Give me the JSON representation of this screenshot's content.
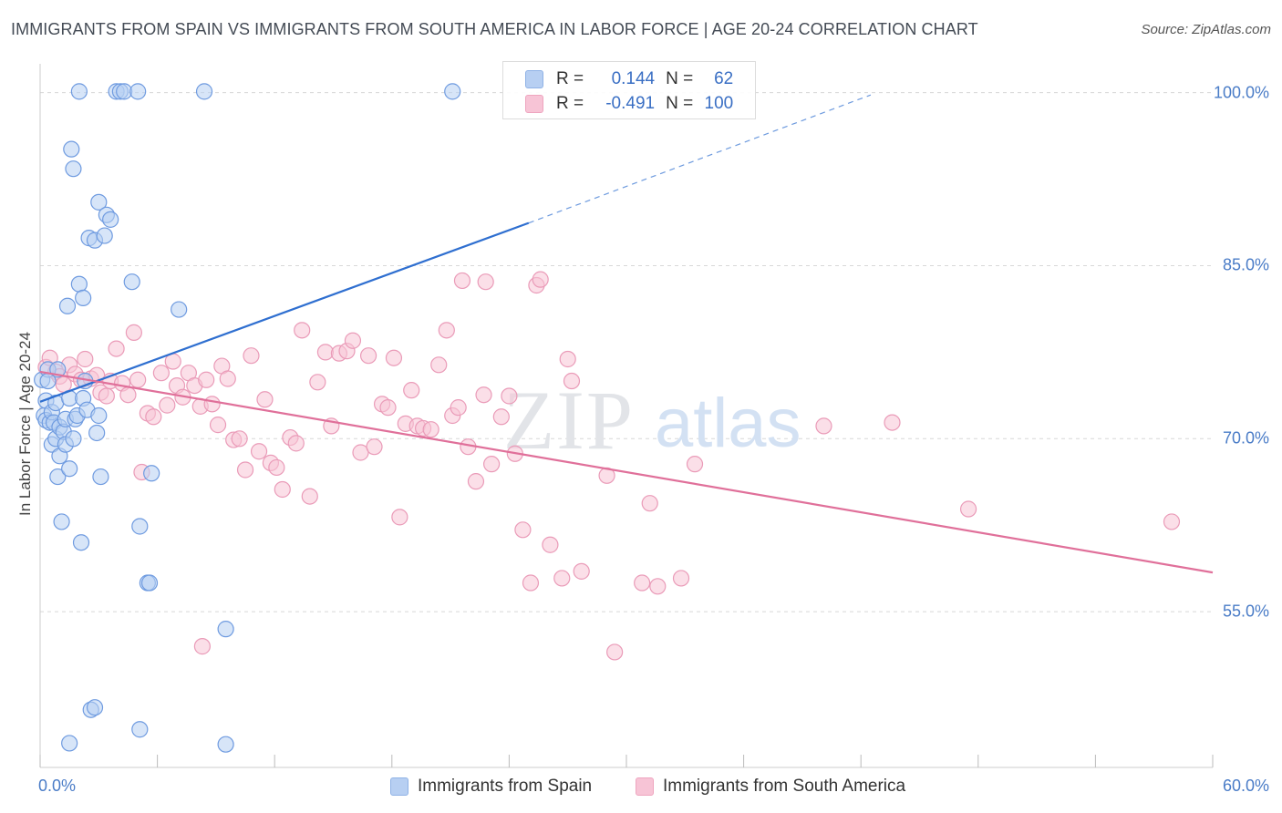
{
  "header": {
    "title": "IMMIGRANTS FROM SPAIN VS IMMIGRANTS FROM SOUTH AMERICA IN LABOR FORCE | AGE 20-24 CORRELATION CHART",
    "source": "Source: ZipAtlas.com"
  },
  "watermark": {
    "zip": "ZIP",
    "atlas": "atlas"
  },
  "legend": {
    "r_label": "R =",
    "n_label": "N =",
    "series": [
      {
        "r": "0.144",
        "n": "62"
      },
      {
        "r": "-0.491",
        "n": "100"
      }
    ]
  },
  "bottom_legend": {
    "spain": "Immigrants from Spain",
    "south_america": "Immigrants from South America"
  },
  "colors": {
    "spain_fill": "#b7cff2",
    "spain_stroke": "#6f9be0",
    "spain_line": "#2f6fd0",
    "sa_fill": "#f7c4d6",
    "sa_stroke": "#ea9bb8",
    "sa_line": "#e0709a",
    "tick_text": "#4a7cc7",
    "grid": "#d8d8d8"
  },
  "chart_data": {
    "type": "scatter",
    "title": "IMMIGRANTS FROM SPAIN VS IMMIGRANTS FROM SOUTH AMERICA IN LABOR FORCE | AGE 20-24 CORRELATION CHART",
    "xlabel": "",
    "ylabel": "In Labor Force | Age 20-24",
    "xlim": [
      0,
      60
    ],
    "ylim": [
      41.5,
      102.5
    ],
    "x_tick_labels": [
      "0.0%",
      "60.0%"
    ],
    "y_ticks": [
      {
        "value": 100,
        "label": "100.0%"
      },
      {
        "value": 85,
        "label": "85.0%"
      },
      {
        "value": 70,
        "label": "70.0%"
      },
      {
        "value": 55,
        "label": "55.0%"
      }
    ],
    "series": [
      {
        "name": "Immigrants from Spain",
        "R": 0.144,
        "N": 62,
        "trend": {
          "x": [
            0.0,
            25.0
          ],
          "y": [
            73.2,
            88.7
          ]
        },
        "trend_extension": {
          "x": [
            25.0,
            42.5
          ],
          "y": [
            88.7,
            99.8
          ]
        },
        "points": [
          [
            0.1,
            75.1
          ],
          [
            0.2,
            72.0
          ],
          [
            0.3,
            73.3
          ],
          [
            0.3,
            71.6
          ],
          [
            0.4,
            76.0
          ],
          [
            0.4,
            75.0
          ],
          [
            0.5,
            71.4
          ],
          [
            0.6,
            72.3
          ],
          [
            0.6,
            69.5
          ],
          [
            0.7,
            71.4
          ],
          [
            0.8,
            73.1
          ],
          [
            0.8,
            70.0
          ],
          [
            0.9,
            66.7
          ],
          [
            1.0,
            68.5
          ],
          [
            1.0,
            71.0
          ],
          [
            1.1,
            62.8
          ],
          [
            1.2,
            70.6
          ],
          [
            1.3,
            71.7
          ],
          [
            1.3,
            69.5
          ],
          [
            1.4,
            81.5
          ],
          [
            1.5,
            67.4
          ],
          [
            1.5,
            73.5
          ],
          [
            1.6,
            95.1
          ],
          [
            1.7,
            93.4
          ],
          [
            1.7,
            70.0
          ],
          [
            1.8,
            71.7
          ],
          [
            1.9,
            72.0
          ],
          [
            2.0,
            100.1
          ],
          [
            2.0,
            83.4
          ],
          [
            2.1,
            61.0
          ],
          [
            2.2,
            82.2
          ],
          [
            2.2,
            73.5
          ],
          [
            2.3,
            75.0
          ],
          [
            2.4,
            72.5
          ],
          [
            2.5,
            87.4
          ],
          [
            2.6,
            46.5
          ],
          [
            2.8,
            87.2
          ],
          [
            2.9,
            70.5
          ],
          [
            3.0,
            72.0
          ],
          [
            3.0,
            90.5
          ],
          [
            3.1,
            66.7
          ],
          [
            3.3,
            87.6
          ],
          [
            3.4,
            89.4
          ],
          [
            3.6,
            89.0
          ],
          [
            3.9,
            100.1
          ],
          [
            4.1,
            100.1
          ],
          [
            4.3,
            100.1
          ],
          [
            4.7,
            83.6
          ],
          [
            5.0,
            100.1
          ],
          [
            5.1,
            44.8
          ],
          [
            5.1,
            62.4
          ],
          [
            5.5,
            57.5
          ],
          [
            5.6,
            57.5
          ],
          [
            5.7,
            67.0
          ],
          [
            7.1,
            81.2
          ],
          [
            8.4,
            100.1
          ],
          [
            9.5,
            53.5
          ],
          [
            9.5,
            43.5
          ],
          [
            21.1,
            100.1
          ],
          [
            1.5,
            43.6
          ],
          [
            0.9,
            76.0
          ],
          [
            2.8,
            46.7
          ]
        ]
      },
      {
        "name": "Immigrants from South America",
        "R": -0.491,
        "N": 100,
        "trend": {
          "x": [
            0.0,
            60.0
          ],
          "y": [
            75.8,
            58.4
          ]
        },
        "points": [
          [
            0.3,
            76.2
          ],
          [
            0.5,
            77.0
          ],
          [
            0.8,
            75.8
          ],
          [
            1.0,
            75.4
          ],
          [
            1.2,
            74.7
          ],
          [
            1.5,
            76.4
          ],
          [
            1.8,
            75.6
          ],
          [
            2.1,
            75.1
          ],
          [
            2.3,
            76.9
          ],
          [
            2.6,
            75.2
          ],
          [
            2.9,
            75.5
          ],
          [
            3.1,
            74.0
          ],
          [
            3.4,
            73.7
          ],
          [
            3.6,
            75.0
          ],
          [
            3.9,
            77.8
          ],
          [
            4.2,
            74.8
          ],
          [
            4.5,
            73.8
          ],
          [
            4.8,
            79.2
          ],
          [
            5.0,
            75.1
          ],
          [
            5.2,
            67.1
          ],
          [
            5.5,
            72.2
          ],
          [
            5.8,
            71.9
          ],
          [
            6.2,
            75.7
          ],
          [
            6.5,
            72.9
          ],
          [
            6.8,
            76.7
          ],
          [
            7.0,
            74.6
          ],
          [
            7.3,
            73.6
          ],
          [
            7.6,
            75.7
          ],
          [
            7.9,
            74.6
          ],
          [
            8.2,
            72.8
          ],
          [
            8.5,
            75.1
          ],
          [
            8.8,
            73.0
          ],
          [
            9.1,
            71.2
          ],
          [
            9.3,
            76.3
          ],
          [
            9.6,
            75.2
          ],
          [
            9.9,
            69.9
          ],
          [
            10.2,
            70.0
          ],
          [
            10.5,
            67.3
          ],
          [
            10.8,
            77.2
          ],
          [
            11.2,
            68.9
          ],
          [
            11.5,
            73.4
          ],
          [
            11.8,
            67.9
          ],
          [
            12.1,
            67.5
          ],
          [
            12.4,
            65.6
          ],
          [
            12.8,
            70.1
          ],
          [
            13.1,
            69.6
          ],
          [
            13.4,
            79.4
          ],
          [
            13.8,
            65.0
          ],
          [
            14.2,
            74.9
          ],
          [
            14.6,
            77.5
          ],
          [
            14.9,
            71.1
          ],
          [
            15.3,
            77.4
          ],
          [
            15.7,
            77.6
          ],
          [
            16.0,
            78.5
          ],
          [
            16.4,
            68.8
          ],
          [
            16.8,
            77.2
          ],
          [
            17.1,
            69.3
          ],
          [
            17.5,
            73.0
          ],
          [
            17.8,
            72.7
          ],
          [
            18.1,
            77.0
          ],
          [
            18.4,
            63.2
          ],
          [
            18.7,
            71.3
          ],
          [
            19.0,
            74.2
          ],
          [
            19.3,
            71.1
          ],
          [
            19.6,
            70.9
          ],
          [
            20.0,
            70.8
          ],
          [
            20.4,
            76.4
          ],
          [
            20.8,
            79.4
          ],
          [
            21.1,
            72.0
          ],
          [
            21.4,
            72.7
          ],
          [
            21.9,
            69.3
          ],
          [
            22.3,
            66.3
          ],
          [
            22.7,
            73.8
          ],
          [
            23.1,
            67.8
          ],
          [
            23.6,
            71.9
          ],
          [
            24.0,
            73.7
          ],
          [
            24.3,
            68.7
          ],
          [
            24.7,
            62.1
          ],
          [
            25.1,
            57.5
          ],
          [
            25.4,
            83.3
          ],
          [
            26.1,
            60.8
          ],
          [
            26.7,
            57.9
          ],
          [
            27.2,
            75.0
          ],
          [
            27.7,
            58.5
          ],
          [
            29.0,
            66.8
          ],
          [
            29.4,
            51.5
          ],
          [
            30.8,
            57.5
          ],
          [
            31.2,
            64.4
          ],
          [
            31.6,
            57.2
          ],
          [
            32.8,
            57.9
          ],
          [
            33.5,
            67.8
          ],
          [
            40.1,
            71.1
          ],
          [
            43.6,
            71.4
          ],
          [
            47.5,
            63.9
          ],
          [
            57.9,
            62.8
          ],
          [
            27.0,
            76.9
          ],
          [
            22.8,
            83.6
          ],
          [
            21.6,
            83.7
          ],
          [
            25.6,
            83.8
          ],
          [
            8.3,
            52.0
          ]
        ]
      }
    ]
  }
}
